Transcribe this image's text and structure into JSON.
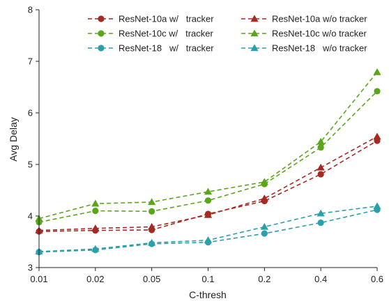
{
  "chart_data": {
    "type": "line",
    "title": "",
    "xlabel": "C-thresh",
    "ylabel": "Avg Delay",
    "categories": [
      "0.01",
      "0.02",
      "0.05",
      "0.1",
      "0.2",
      "0.4",
      "0.6"
    ],
    "ylim": [
      3,
      8
    ],
    "yticks": [
      "3",
      "4",
      "5",
      "6",
      "7",
      "8"
    ],
    "grid": false,
    "legend_position": "top-right",
    "series": [
      {
        "name": "ResNet-10a w/   tracker",
        "color": "#a52a22",
        "marker": "circle",
        "values": [
          3.7,
          3.72,
          3.73,
          4.04,
          4.29,
          4.81,
          5.46
        ]
      },
      {
        "name": "ResNet-10c w/   tracker",
        "color": "#5aa61b",
        "marker": "circle",
        "values": [
          3.88,
          4.1,
          4.09,
          4.3,
          4.62,
          5.33,
          6.42
        ]
      },
      {
        "name": "ResNet-18   w/   tracker",
        "color": "#2aa0ab",
        "marker": "circle",
        "values": [
          3.3,
          3.34,
          3.46,
          3.49,
          3.66,
          3.87,
          4.12
        ]
      },
      {
        "name": "ResNet-10a w/o tracker",
        "color": "#a52a22",
        "marker": "triangle",
        "values": [
          3.72,
          3.76,
          3.79,
          4.02,
          4.34,
          4.94,
          5.54
        ]
      },
      {
        "name": "ResNet-10c w/o tracker",
        "color": "#5aa61b",
        "marker": "triangle",
        "values": [
          3.95,
          4.24,
          4.27,
          4.47,
          4.66,
          5.44,
          6.79
        ]
      },
      {
        "name": "ResNet-18   w/o tracker",
        "color": "#2aa0ab",
        "marker": "triangle",
        "values": [
          3.31,
          3.36,
          3.48,
          3.53,
          3.79,
          4.05,
          4.19
        ]
      }
    ]
  }
}
